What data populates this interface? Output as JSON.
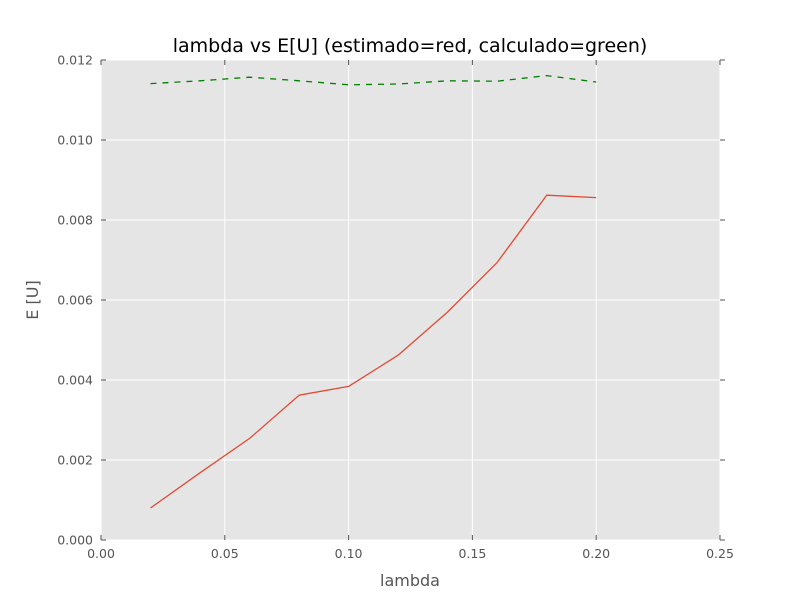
{
  "chart_data": {
    "type": "line",
    "title": "lambda vs E[U] (estimado=red, calculado=green)",
    "xlabel": "lambda",
    "ylabel": "E [U]",
    "xlim": [
      0.0,
      0.25
    ],
    "ylim": [
      0.0,
      0.012
    ],
    "xticks": [
      0.0,
      0.05,
      0.1,
      0.15,
      0.2,
      0.25
    ],
    "xtick_labels": [
      "0.00",
      "0.05",
      "0.10",
      "0.15",
      "0.20",
      "0.25"
    ],
    "yticks": [
      0.0,
      0.002,
      0.004,
      0.006,
      0.008,
      0.01,
      0.012
    ],
    "ytick_labels": [
      "0.000",
      "0.002",
      "0.004",
      "0.006",
      "0.008",
      "0.010",
      "0.012"
    ],
    "grid": true,
    "background_color": "#e5e5e5",
    "grid_color": "#ffffff",
    "series": [
      {
        "color": "#e24a33",
        "style": "solid",
        "x": [
          0.02,
          0.04,
          0.06,
          0.08,
          0.1,
          0.12,
          0.14,
          0.16,
          0.18,
          0.2
        ],
        "y": [
          0.0008,
          0.00168,
          0.00254,
          0.00362,
          0.00384,
          0.00462,
          0.0057,
          0.00694,
          0.00862,
          0.00856
        ]
      },
      {
        "color": "#008000",
        "style": "dashed",
        "x": [
          0.02,
          0.04,
          0.06,
          0.08,
          0.1,
          0.12,
          0.14,
          0.16,
          0.18,
          0.2
        ],
        "y": [
          0.01141,
          0.01148,
          0.01157,
          0.01148,
          0.01138,
          0.0114,
          0.01148,
          0.01147,
          0.01161,
          0.01145
        ]
      }
    ]
  }
}
